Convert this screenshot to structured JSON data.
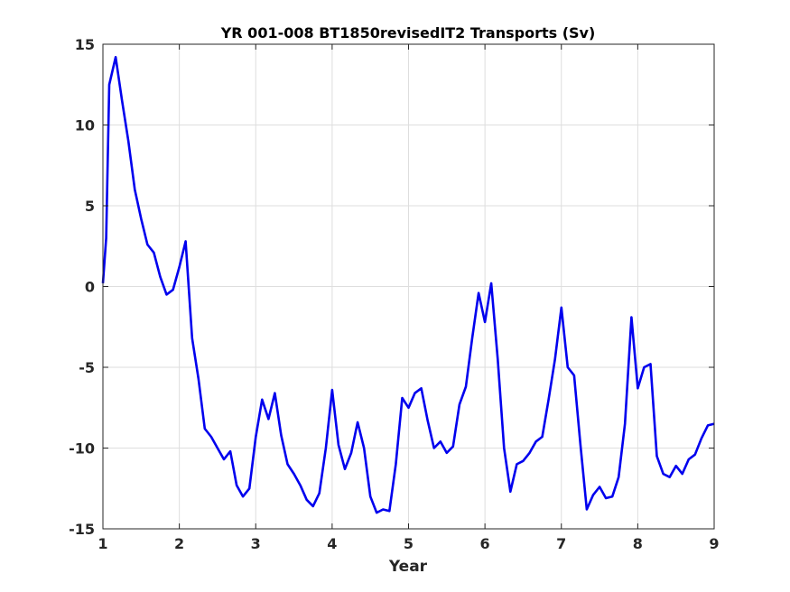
{
  "chart_data": {
    "type": "line",
    "title": "YR 001-008 BT1850revisedIT2 Transports (Sv)",
    "xlabel": "Year",
    "ylabel": "",
    "xlim": [
      1,
      9
    ],
    "ylim": [
      -15,
      15
    ],
    "xticks": [
      "1",
      "2",
      "3",
      "4",
      "5",
      "6",
      "7",
      "8",
      "9"
    ],
    "yticks": [
      "15",
      "10",
      "5",
      "0",
      "-5",
      "-10",
      "-15"
    ],
    "grid": true,
    "series": [
      {
        "name": "",
        "color": "#0000ee",
        "x": [
          1.0,
          1.042,
          1.083,
          1.167,
          1.25,
          1.333,
          1.417,
          1.5,
          1.583,
          1.667,
          1.75,
          1.833,
          1.917,
          2.0,
          2.083,
          2.167,
          2.25,
          2.333,
          2.417,
          2.5,
          2.583,
          2.667,
          2.75,
          2.833,
          2.917,
          3.0,
          3.083,
          3.167,
          3.25,
          3.333,
          3.417,
          3.5,
          3.583,
          3.667,
          3.75,
          3.833,
          3.917,
          4.0,
          4.083,
          4.167,
          4.25,
          4.333,
          4.417,
          4.5,
          4.583,
          4.667,
          4.75,
          4.833,
          4.917,
          5.0,
          5.083,
          5.167,
          5.25,
          5.333,
          5.417,
          5.5,
          5.583,
          5.667,
          5.75,
          5.833,
          5.917,
          6.0,
          6.083,
          6.167,
          6.25,
          6.333,
          6.417,
          6.5,
          6.583,
          6.667,
          6.75,
          6.833,
          6.917,
          7.0,
          7.083,
          7.167,
          7.25,
          7.333,
          7.417,
          7.5,
          7.583,
          7.667,
          7.75,
          7.833,
          7.917,
          8.0,
          8.083,
          8.167,
          8.25,
          8.333,
          8.417,
          8.5,
          8.583,
          8.667,
          8.75,
          8.833,
          8.917,
          9.0
        ],
        "values": [
          0.2,
          3.0,
          12.5,
          14.2,
          11.5,
          9.0,
          6.0,
          4.2,
          2.6,
          2.1,
          0.6,
          -0.5,
          -0.2,
          1.2,
          2.8,
          -3.2,
          -5.7,
          -8.8,
          -9.3,
          -10.0,
          -10.7,
          -10.2,
          -12.3,
          -13.0,
          -12.5,
          -9.3,
          -7.0,
          -8.2,
          -6.6,
          -9.2,
          -11.0,
          -11.6,
          -12.3,
          -13.2,
          -13.6,
          -12.8,
          -10.0,
          -6.4,
          -9.8,
          -11.3,
          -10.3,
          -8.4,
          -10.0,
          -13.0,
          -14.0,
          -13.8,
          -13.9,
          -11.0,
          -6.9,
          -7.5,
          -6.6,
          -6.3,
          -8.3,
          -10.0,
          -9.6,
          -10.3,
          -9.9,
          -7.3,
          -6.2,
          -3.2,
          -0.4,
          -2.2,
          0.2,
          -4.5,
          -10.0,
          -12.7,
          -11.0,
          -10.8,
          -10.3,
          -9.6,
          -9.3,
          -7.0,
          -4.5,
          -1.3,
          -5.0,
          -5.5,
          -9.8,
          -13.8,
          -12.9,
          -12.4,
          -13.1,
          -13.0,
          -11.8,
          -8.5,
          -1.9,
          -6.3,
          -5.0,
          -4.8,
          -10.5,
          -11.6,
          -11.8,
          -11.1,
          -11.6,
          -10.7,
          -10.4,
          -9.4,
          -8.6,
          -8.5
        ]
      }
    ]
  }
}
